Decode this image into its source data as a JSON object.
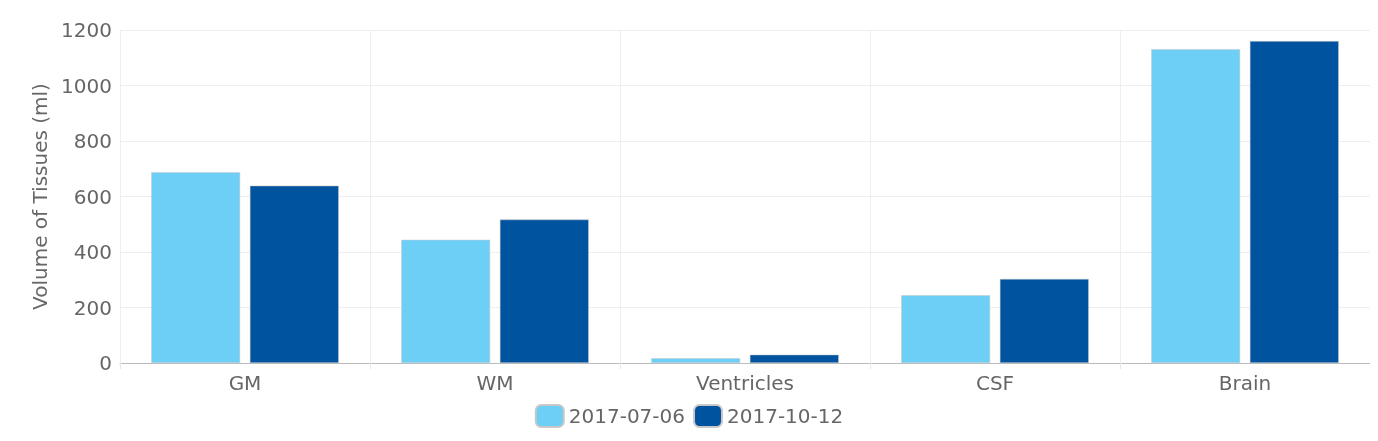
{
  "chart_data": {
    "type": "bar",
    "ylabel": "Volume of Tissues (ml)",
    "categories": [
      "GM",
      "WM",
      "Ventricles",
      "CSF",
      "Brain"
    ],
    "series": [
      {
        "name": "2017-07-06",
        "color": "#6dcff6",
        "values": [
          687,
          444,
          17,
          244,
          1131
        ]
      },
      {
        "name": "2017-10-12",
        "color": "#00549f",
        "values": [
          639,
          517,
          30,
          303,
          1160
        ]
      }
    ],
    "ylim": [
      0,
      1200
    ],
    "yticks": [
      0,
      200,
      400,
      600,
      800,
      1000,
      1200
    ],
    "grid": true,
    "legend": "bottom"
  }
}
